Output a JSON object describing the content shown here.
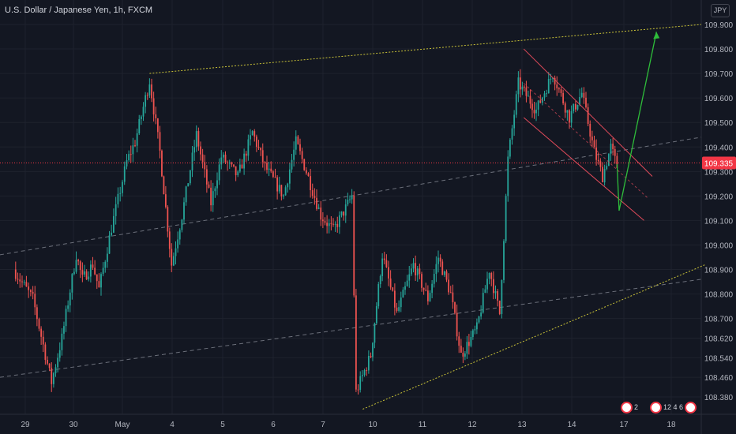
{
  "header": {
    "title": "U.S. Dollar / Japanese Yen, 1h, FXCM",
    "currency_button": "JPY"
  },
  "events": {
    "left_count": "2",
    "right_label": "12 4 6"
  },
  "colors": {
    "background": "#131722",
    "up": "#26a69a",
    "down": "#ef5350",
    "grid": "#1e222d",
    "price_tag": "#f23645",
    "arrow": "#2ebd3a",
    "channel_yellow": "#c9c237"
  },
  "chart_data": {
    "type": "candlestick",
    "title": "U.S. Dollar / Japanese Yen, 1h, FXCM",
    "y_axis": {
      "ticks": [
        109.9,
        109.8,
        109.7,
        109.6,
        109.5,
        109.4,
        109.3,
        109.2,
        109.1,
        109.0,
        108.9,
        108.8,
        108.7,
        108.62,
        108.54,
        108.46,
        108.38
      ],
      "tick_labels": [
        "109.900",
        "109.800",
        "109.700",
        "109.600",
        "109.500",
        "109.400",
        "109.300",
        "109.200",
        "109.100",
        "109.000",
        "108.900",
        "108.800",
        "108.700",
        "108.620",
        "108.540",
        "108.460",
        "108.380"
      ],
      "range": [
        108.3,
        109.95
      ]
    },
    "x_axis": {
      "tick_labels": [
        "29",
        "30",
        "May",
        "4",
        "5",
        "6",
        "7",
        "10",
        "11",
        "12",
        "13",
        "14",
        "17",
        "18"
      ],
      "range": [
        "Apr 29",
        "May 18"
      ]
    },
    "current_price": {
      "value": 109.335,
      "label": "109.335"
    },
    "price_path": [
      [
        "Apr 28 23:00",
        108.9
      ],
      [
        "Apr 29 09:00",
        108.78
      ],
      [
        "Apr 29 18:00",
        108.44
      ],
      [
        "Apr 29 23:00",
        108.62
      ],
      [
        "Apr 30 04:00",
        108.96
      ],
      [
        "Apr 30 07:00",
        108.86
      ],
      [
        "Apr 30 12:00",
        108.92
      ],
      [
        "Apr 30 15:00",
        108.82
      ],
      [
        "Apr 30 21:00",
        109.07
      ],
      [
        "May 3 04:00",
        109.34
      ],
      [
        "May 3 08:00",
        109.42
      ],
      [
        "May 3 15:00",
        109.67
      ],
      [
        "May 3 20:00",
        109.38
      ],
      [
        "May 4 02:00",
        108.92
      ],
      [
        "May 4 07:00",
        109.12
      ],
      [
        "May 4 14:00",
        109.45
      ],
      [
        "May 4 21:00",
        109.17
      ],
      [
        "May 5 02:00",
        109.36
      ],
      [
        "May 5 10:00",
        109.28
      ],
      [
        "May 5 17:00",
        109.46
      ],
      [
        "May 5 23:00",
        109.32
      ],
      [
        "May 6 08:00",
        109.2
      ],
      [
        "May 6 14:00",
        109.42
      ],
      [
        "May 6 19:00",
        109.3
      ],
      [
        "May 7 02:00",
        109.12
      ],
      [
        "May 7 08:00",
        109.06
      ],
      [
        "May 7 14:00",
        109.15
      ],
      [
        "May 7 17:00",
        109.2
      ],
      [
        "May 7 19:00",
        108.4
      ],
      [
        "May 9 23:00",
        108.55
      ],
      [
        "May 10 05:00",
        108.96
      ],
      [
        "May 10 12:00",
        108.72
      ],
      [
        "May 10 20:00",
        108.92
      ],
      [
        "May 11 03:00",
        108.78
      ],
      [
        "May 11 08:00",
        108.95
      ],
      [
        "May 11 14:00",
        108.8
      ],
      [
        "May 11 19:00",
        108.55
      ],
      [
        "May 12 03:00",
        108.66
      ],
      [
        "May 12 09:00",
        108.9
      ],
      [
        "May 12 14:00",
        108.72
      ],
      [
        "May 12 18:00",
        109.35
      ],
      [
        "May 12 23:00",
        109.66
      ],
      [
        "May 13 08:00",
        109.55
      ],
      [
        "May 13 16:00",
        109.7
      ],
      [
        "May 14 00:00",
        109.52
      ],
      [
        "May 14 06:00",
        109.62
      ],
      [
        "May 14 12:00",
        109.38
      ],
      [
        "May 14 16:00",
        109.28
      ],
      [
        "May 14 20:00",
        109.4
      ],
      [
        "May 14 23:00",
        109.32
      ]
    ],
    "drawings": {
      "top_line": [
        [
          "May 3 15:00",
          109.7
        ],
        [
          "May 18 16:00",
          109.9
        ]
      ],
      "upper_channel": [
        [
          "May 13 02:00",
          109.8
        ],
        [
          "May 17 16:00",
          109.28
        ]
      ],
      "lower_channel": [
        [
          "May 13 02:00",
          109.52
        ],
        [
          "May 17 12:00",
          109.1
        ]
      ],
      "bottom_line": [
        [
          "May 9 16:00",
          108.33
        ],
        [
          "May 18 18:00",
          108.92
        ]
      ],
      "projection_arrow": [
        [
          "May 14 23:00",
          109.33
        ],
        [
          "May 16 23:00",
          109.14
        ],
        [
          "May 17 18:00",
          109.87
        ]
      ]
    }
  }
}
